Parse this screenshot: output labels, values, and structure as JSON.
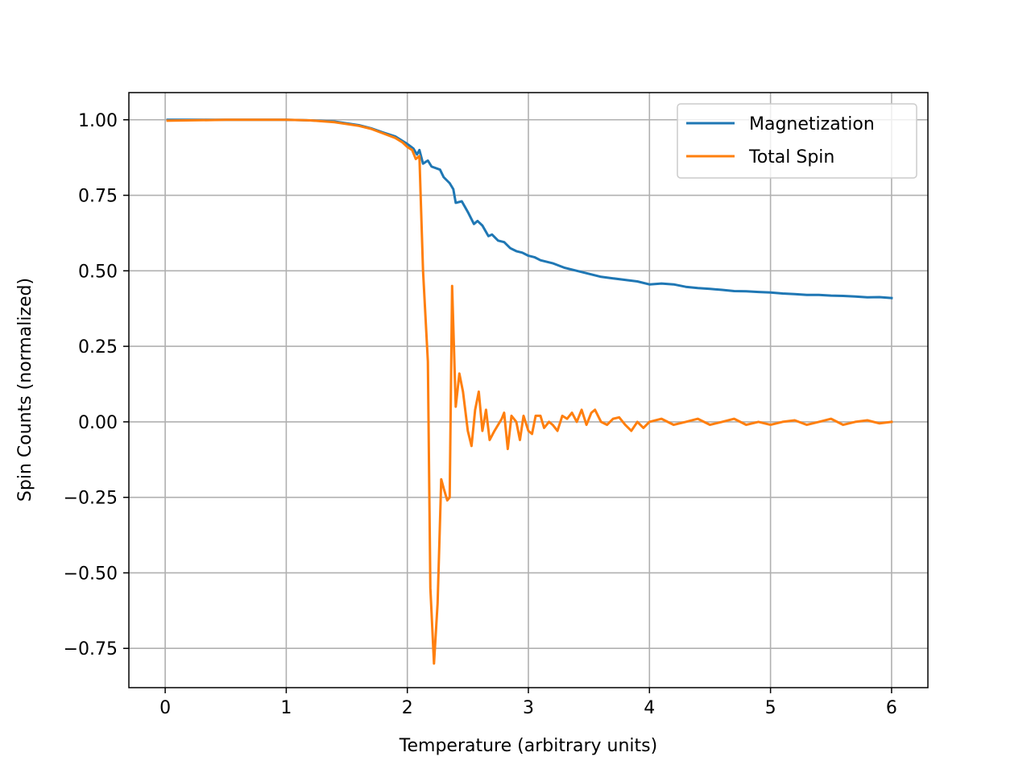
{
  "chart_data": {
    "type": "line",
    "title": "",
    "xlabel": "Temperature (arbitrary units)",
    "ylabel": "Spin Counts (normalized)",
    "xlim": [
      -0.3,
      6.3
    ],
    "ylim": [
      -0.88,
      1.09
    ],
    "grid": true,
    "legend_position": "top-right",
    "x_ticks": [
      0,
      1,
      2,
      3,
      4,
      5,
      6
    ],
    "x_tick_labels": [
      "0",
      "1",
      "2",
      "3",
      "4",
      "5",
      "6"
    ],
    "y_ticks": [
      1.0,
      0.75,
      0.5,
      0.25,
      0.0,
      -0.25,
      -0.5,
      -0.75
    ],
    "y_tick_labels": [
      "1.00",
      "0.75",
      "0.50",
      "0.25",
      "0.00",
      "−0.25",
      "−0.50",
      "−0.75"
    ],
    "series": [
      {
        "name": "Magnetization",
        "color": "#1f77b4",
        "points": [
          [
            0.02,
            1.0
          ],
          [
            0.5,
            1.0
          ],
          [
            1.0,
            1.0
          ],
          [
            1.2,
            0.998
          ],
          [
            1.4,
            0.994
          ],
          [
            1.6,
            0.982
          ],
          [
            1.7,
            0.972
          ],
          [
            1.8,
            0.958
          ],
          [
            1.9,
            0.945
          ],
          [
            1.96,
            0.93
          ],
          [
            2.0,
            0.92
          ],
          [
            2.05,
            0.905
          ],
          [
            2.08,
            0.885
          ],
          [
            2.1,
            0.9
          ],
          [
            2.13,
            0.855
          ],
          [
            2.17,
            0.865
          ],
          [
            2.2,
            0.845
          ],
          [
            2.27,
            0.835
          ],
          [
            2.3,
            0.81
          ],
          [
            2.35,
            0.79
          ],
          [
            2.38,
            0.77
          ],
          [
            2.4,
            0.725
          ],
          [
            2.45,
            0.73
          ],
          [
            2.5,
            0.695
          ],
          [
            2.55,
            0.655
          ],
          [
            2.58,
            0.665
          ],
          [
            2.62,
            0.65
          ],
          [
            2.67,
            0.615
          ],
          [
            2.7,
            0.62
          ],
          [
            2.75,
            0.6
          ],
          [
            2.8,
            0.595
          ],
          [
            2.85,
            0.575
          ],
          [
            2.9,
            0.565
          ],
          [
            2.95,
            0.56
          ],
          [
            3.0,
            0.55
          ],
          [
            3.05,
            0.545
          ],
          [
            3.1,
            0.535
          ],
          [
            3.2,
            0.525
          ],
          [
            3.3,
            0.51
          ],
          [
            3.4,
            0.5
          ],
          [
            3.5,
            0.49
          ],
          [
            3.6,
            0.48
          ],
          [
            3.7,
            0.475
          ],
          [
            3.8,
            0.47
          ],
          [
            3.9,
            0.465
          ],
          [
            4.0,
            0.455
          ],
          [
            4.1,
            0.458
          ],
          [
            4.2,
            0.455
          ],
          [
            4.3,
            0.447
          ],
          [
            4.4,
            0.443
          ],
          [
            4.5,
            0.44
          ],
          [
            4.6,
            0.437
          ],
          [
            4.7,
            0.433
          ],
          [
            4.8,
            0.432
          ],
          [
            4.9,
            0.43
          ],
          [
            5.0,
            0.428
          ],
          [
            5.1,
            0.425
          ],
          [
            5.2,
            0.423
          ],
          [
            5.3,
            0.42
          ],
          [
            5.4,
            0.42
          ],
          [
            5.5,
            0.418
          ],
          [
            5.6,
            0.417
          ],
          [
            5.7,
            0.415
          ],
          [
            5.8,
            0.412
          ],
          [
            5.9,
            0.413
          ],
          [
            6.0,
            0.41
          ]
        ]
      },
      {
        "name": "Total Spin",
        "color": "#ff7f0e",
        "points": [
          [
            0.02,
            0.997
          ],
          [
            0.5,
            1.0
          ],
          [
            1.0,
            1.0
          ],
          [
            1.2,
            0.998
          ],
          [
            1.4,
            0.992
          ],
          [
            1.6,
            0.98
          ],
          [
            1.7,
            0.97
          ],
          [
            1.8,
            0.955
          ],
          [
            1.9,
            0.94
          ],
          [
            1.96,
            0.925
          ],
          [
            2.0,
            0.91
          ],
          [
            2.04,
            0.9
          ],
          [
            2.07,
            0.87
          ],
          [
            2.1,
            0.88
          ],
          [
            2.13,
            0.5
          ],
          [
            2.17,
            0.2
          ],
          [
            2.19,
            -0.55
          ],
          [
            2.22,
            -0.8
          ],
          [
            2.25,
            -0.6
          ],
          [
            2.28,
            -0.19
          ],
          [
            2.3,
            -0.22
          ],
          [
            2.33,
            -0.26
          ],
          [
            2.35,
            -0.25
          ],
          [
            2.37,
            0.45
          ],
          [
            2.4,
            0.05
          ],
          [
            2.43,
            0.16
          ],
          [
            2.46,
            0.1
          ],
          [
            2.5,
            -0.03
          ],
          [
            2.53,
            -0.08
          ],
          [
            2.56,
            0.04
          ],
          [
            2.59,
            0.1
          ],
          [
            2.62,
            -0.03
          ],
          [
            2.65,
            0.04
          ],
          [
            2.68,
            -0.06
          ],
          [
            2.72,
            -0.03
          ],
          [
            2.75,
            -0.01
          ],
          [
            2.78,
            0.01
          ],
          [
            2.8,
            0.03
          ],
          [
            2.83,
            -0.09
          ],
          [
            2.86,
            0.02
          ],
          [
            2.9,
            0.0
          ],
          [
            2.93,
            -0.06
          ],
          [
            2.96,
            0.02
          ],
          [
            3.0,
            -0.03
          ],
          [
            3.03,
            -0.04
          ],
          [
            3.06,
            0.02
          ],
          [
            3.1,
            0.02
          ],
          [
            3.13,
            -0.02
          ],
          [
            3.17,
            0.0
          ],
          [
            3.2,
            -0.01
          ],
          [
            3.24,
            -0.03
          ],
          [
            3.28,
            0.02
          ],
          [
            3.32,
            0.01
          ],
          [
            3.36,
            0.03
          ],
          [
            3.4,
            0.0
          ],
          [
            3.44,
            0.04
          ],
          [
            3.48,
            -0.01
          ],
          [
            3.52,
            0.03
          ],
          [
            3.55,
            0.04
          ],
          [
            3.6,
            0.0
          ],
          [
            3.65,
            -0.01
          ],
          [
            3.7,
            0.01
          ],
          [
            3.75,
            0.015
          ],
          [
            3.8,
            -0.01
          ],
          [
            3.85,
            -0.03
          ],
          [
            3.9,
            0.0
          ],
          [
            3.95,
            -0.02
          ],
          [
            4.0,
            0.0
          ],
          [
            4.1,
            0.01
          ],
          [
            4.2,
            -0.01
          ],
          [
            4.3,
            0.0
          ],
          [
            4.4,
            0.01
          ],
          [
            4.5,
            -0.01
          ],
          [
            4.6,
            0.0
          ],
          [
            4.7,
            0.01
          ],
          [
            4.8,
            -0.01
          ],
          [
            4.9,
            0.0
          ],
          [
            5.0,
            -0.01
          ],
          [
            5.1,
            0.0
          ],
          [
            5.2,
            0.005
          ],
          [
            5.3,
            -0.01
          ],
          [
            5.4,
            0.0
          ],
          [
            5.5,
            0.01
          ],
          [
            5.6,
            -0.01
          ],
          [
            5.7,
            0.0
          ],
          [
            5.8,
            0.005
          ],
          [
            5.9,
            -0.005
          ],
          [
            6.0,
            0.0
          ]
        ]
      }
    ]
  }
}
